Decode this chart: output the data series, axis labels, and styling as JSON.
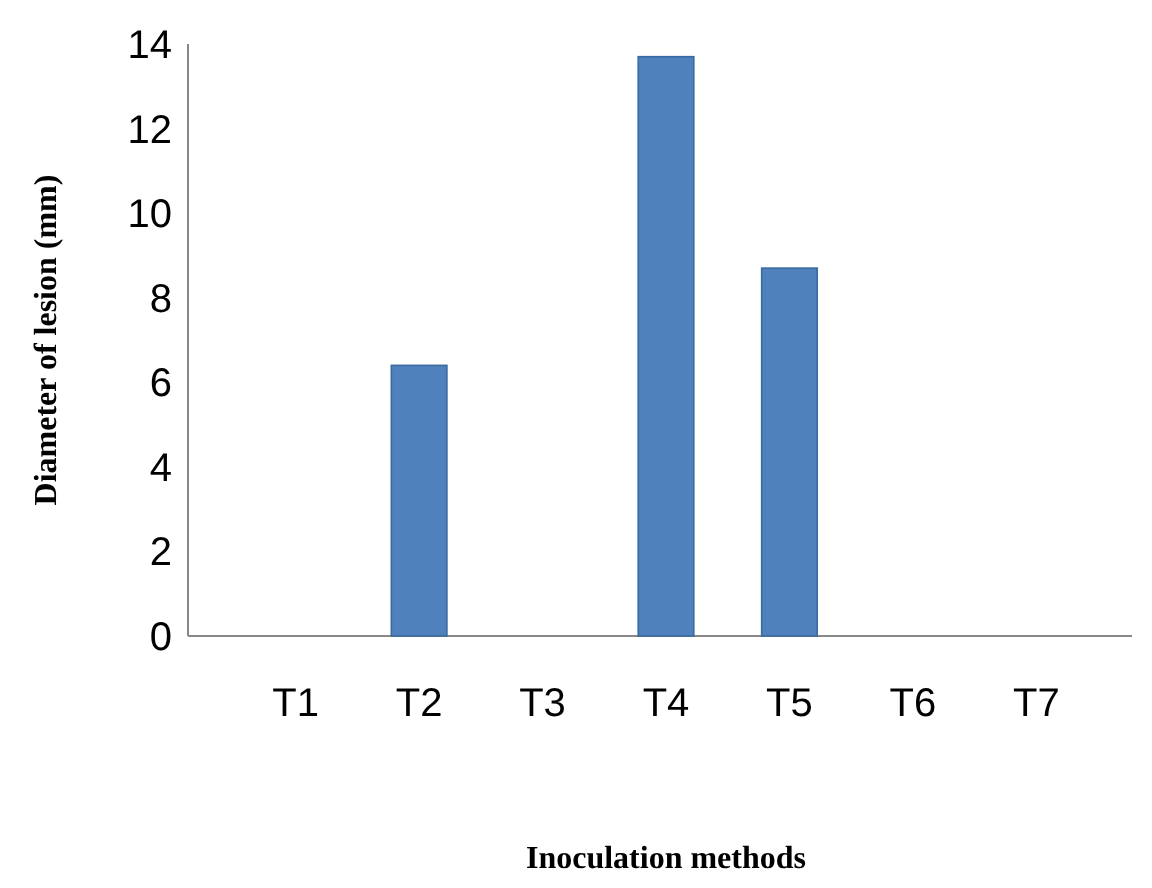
{
  "chart_data": {
    "type": "bar",
    "xlabel": "Inoculation methods",
    "ylabel": "Diameter of lesion (mm)",
    "categories": [
      "T1",
      "T2",
      "T3",
      "T4",
      "T5",
      "T6",
      "T7"
    ],
    "values": [
      0,
      6.4,
      0,
      13.7,
      8.7,
      0,
      0
    ],
    "color": "#4f81bd",
    "ylim": [
      0,
      14
    ],
    "yticks": [
      0,
      2,
      4,
      6,
      8,
      10,
      12,
      14
    ],
    "grid": false
  }
}
